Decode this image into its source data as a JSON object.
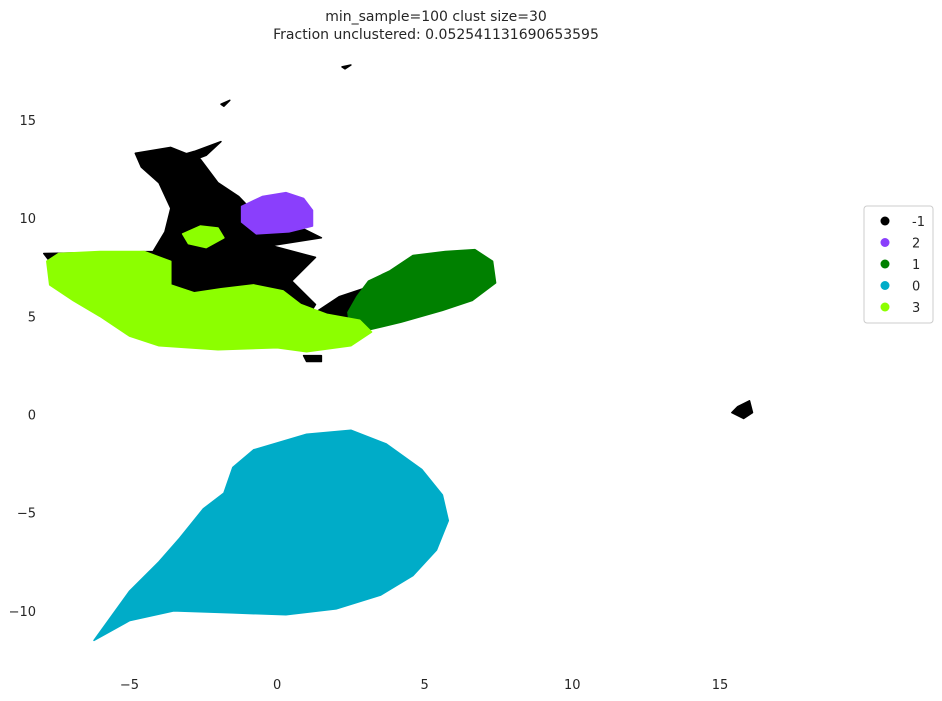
{
  "chart_data": {
    "type": "scatter",
    "title": "min_sample=100 clust size=30",
    "subtitle": "Fraction unclustered: 0.052541131690653595",
    "xlabel": "",
    "ylabel": "",
    "xlim": [
      -8.3,
      21.3
    ],
    "ylim": [
      -12.5,
      17.9
    ],
    "x_ticks": [
      -5,
      0,
      5,
      10,
      15
    ],
    "y_ticks": [
      -10,
      -5,
      0,
      5,
      10,
      15
    ],
    "grid": false,
    "legend_position": "right",
    "legend": [
      {
        "label": "-1",
        "color": "#000000"
      },
      {
        "label": "2",
        "color": "#8a3ffc"
      },
      {
        "label": "1",
        "color": "#008000"
      },
      {
        "label": "0",
        "color": "#00acc8"
      },
      {
        "label": "3",
        "color": "#8cff00"
      }
    ],
    "clusters": [
      {
        "name": "-1",
        "color": "#000000",
        "regions": [
          [
            [
              -4.8,
              13.3
            ],
            [
              -3.6,
              13.6
            ],
            [
              -2.6,
              13.0
            ],
            [
              -2.0,
              11.8
            ],
            [
              -1.3,
              11.1
            ],
            [
              -0.6,
              10.0
            ],
            [
              0.7,
              9.6
            ],
            [
              1.5,
              9.0
            ],
            [
              -0.2,
              8.6
            ],
            [
              1.3,
              8.0
            ],
            [
              0.5,
              6.8
            ],
            [
              1.3,
              5.6
            ],
            [
              0.8,
              4.4
            ],
            [
              -0.2,
              3.6
            ],
            [
              -2.5,
              3.8
            ],
            [
              -3.8,
              4.8
            ],
            [
              -5.0,
              6.6
            ],
            [
              -7.7,
              7.8
            ],
            [
              -7.9,
              8.2
            ],
            [
              -4.2,
              8.3
            ],
            [
              -3.8,
              9.3
            ],
            [
              -3.6,
              10.5
            ],
            [
              -4.0,
              11.8
            ],
            [
              -4.6,
              12.6
            ]
          ],
          [
            [
              0.4,
              3.7
            ],
            [
              1.5,
              3.7
            ],
            [
              2.3,
              4.3
            ],
            [
              2.9,
              5.4
            ],
            [
              3.5,
              6.0
            ],
            [
              2.9,
              6.4
            ],
            [
              2.1,
              6.0
            ],
            [
              1.3,
              5.2
            ],
            [
              0.6,
              4.6
            ]
          ],
          [
            [
              -3.5,
              13.1
            ],
            [
              -2.8,
              13.4
            ],
            [
              -1.9,
              13.9
            ],
            [
              -2.4,
              13.2
            ],
            [
              -3.1,
              12.8
            ]
          ],
          [
            [
              15.6,
              0.4
            ],
            [
              16.0,
              0.7
            ],
            [
              16.1,
              0.1
            ],
            [
              15.8,
              -0.2
            ],
            [
              15.4,
              0.1
            ]
          ],
          [
            [
              0.9,
              3.0
            ],
            [
              1.5,
              3.0
            ],
            [
              1.5,
              2.7
            ],
            [
              1.0,
              2.7
            ]
          ],
          [
            [
              2.2,
              17.7
            ],
            [
              2.5,
              17.8
            ],
            [
              2.3,
              17.6
            ]
          ],
          [
            [
              -1.9,
              15.8
            ],
            [
              -1.6,
              16.0
            ],
            [
              -1.8,
              15.7
            ]
          ]
        ]
      },
      {
        "name": "2",
        "color": "#8a3ffc",
        "regions": [
          [
            [
              -1.2,
              9.8
            ],
            [
              -1.2,
              10.6
            ],
            [
              -0.5,
              11.1
            ],
            [
              0.3,
              11.3
            ],
            [
              0.9,
              11.0
            ],
            [
              1.2,
              10.4
            ],
            [
              1.2,
              9.6
            ],
            [
              0.4,
              9.3
            ],
            [
              -0.7,
              9.2
            ]
          ]
        ]
      },
      {
        "name": "1",
        "color": "#008000",
        "regions": [
          [
            [
              2.5,
              4.1
            ],
            [
              4.2,
              4.7
            ],
            [
              5.6,
              5.3
            ],
            [
              6.6,
              5.8
            ],
            [
              7.4,
              6.7
            ],
            [
              7.3,
              7.8
            ],
            [
              6.7,
              8.4
            ],
            [
              5.7,
              8.3
            ],
            [
              4.6,
              8.1
            ],
            [
              3.8,
              7.3
            ],
            [
              3.1,
              6.8
            ],
            [
              2.7,
              6.0
            ],
            [
              2.4,
              5.2
            ]
          ]
        ]
      },
      {
        "name": "0",
        "color": "#00acc8",
        "regions": [
          [
            [
              -6.2,
              -11.5
            ],
            [
              -5.0,
              -10.5
            ],
            [
              -3.5,
              -10.0
            ],
            [
              -1.5,
              -10.1
            ],
            [
              0.3,
              -10.2
            ],
            [
              2.0,
              -9.9
            ],
            [
              3.5,
              -9.2
            ],
            [
              4.6,
              -8.2
            ],
            [
              5.4,
              -6.9
            ],
            [
              5.8,
              -5.4
            ],
            [
              5.6,
              -4.1
            ],
            [
              4.9,
              -2.8
            ],
            [
              3.7,
              -1.5
            ],
            [
              2.5,
              -0.8
            ],
            [
              1.0,
              -1.0
            ],
            [
              -0.8,
              -1.8
            ],
            [
              -1.5,
              -2.7
            ],
            [
              -1.8,
              -4.0
            ],
            [
              -2.5,
              -4.8
            ],
            [
              -3.3,
              -6.3
            ],
            [
              -4.0,
              -7.5
            ],
            [
              -5.0,
              -9.0
            ]
          ]
        ]
      },
      {
        "name": "3",
        "color": "#8cff00",
        "regions": [
          [
            [
              -7.8,
              7.8
            ],
            [
              -7.7,
              6.6
            ],
            [
              -6.9,
              5.8
            ],
            [
              -6.0,
              5.0
            ],
            [
              -5.0,
              4.0
            ],
            [
              -4.0,
              3.5
            ],
            [
              -2.0,
              3.3
            ],
            [
              0.0,
              3.4
            ],
            [
              1.0,
              3.2
            ],
            [
              2.5,
              3.5
            ],
            [
              3.2,
              4.2
            ],
            [
              2.8,
              4.8
            ],
            [
              1.7,
              5.1
            ],
            [
              0.8,
              5.6
            ],
            [
              0.2,
              6.3
            ],
            [
              -0.8,
              6.6
            ],
            [
              -1.9,
              6.4
            ],
            [
              -2.8,
              6.2
            ],
            [
              -3.6,
              6.6
            ],
            [
              -3.6,
              7.8
            ],
            [
              -4.5,
              8.3
            ],
            [
              -6.0,
              8.3
            ],
            [
              -7.4,
              8.2
            ]
          ],
          [
            [
              -3.2,
              9.2
            ],
            [
              -2.6,
              9.6
            ],
            [
              -2.0,
              9.5
            ],
            [
              -1.8,
              9.0
            ],
            [
              -2.4,
              8.5
            ],
            [
              -3.0,
              8.7
            ]
          ]
        ]
      }
    ]
  }
}
